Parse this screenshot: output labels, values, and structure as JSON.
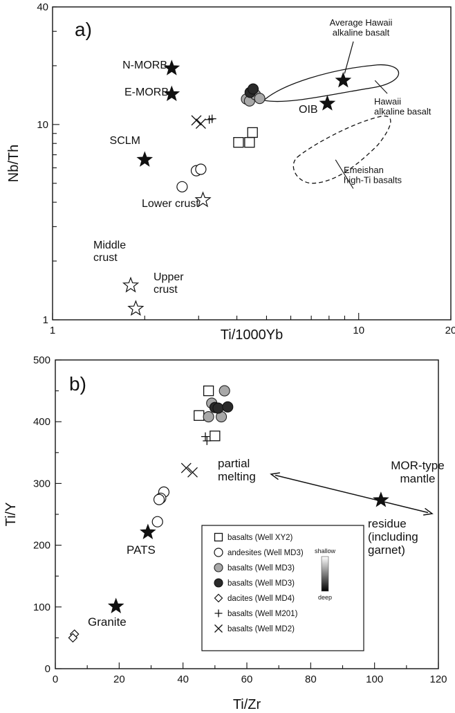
{
  "chart_data": [
    {
      "type": "scatter",
      "panel_label": "a)",
      "xlabel": "Ti/1000Yb",
      "ylabel": "Nb/Th",
      "xscale": "log",
      "yscale": "log",
      "xlim": [
        1,
        20
      ],
      "ylim": [
        1,
        40
      ],
      "x_ticks": [
        1,
        10,
        20
      ],
      "y_ticks": [
        1,
        10,
        40
      ],
      "series": [
        {
          "name": "basalts (Well XY2)",
          "marker": "square-open",
          "points": [
            [
              4.05,
              8.1
            ],
            [
              4.4,
              8.1
            ],
            [
              4.5,
              9.1
            ]
          ]
        },
        {
          "name": "andesites (Well MD3)",
          "marker": "circle-open",
          "points": [
            [
              2.65,
              4.8
            ],
            [
              2.95,
              5.8
            ],
            [
              3.05,
              5.9
            ]
          ]
        },
        {
          "name": "basalts (Well MD3)",
          "marker": "circle-gray",
          "points": [
            [
              4.3,
              13.5
            ],
            [
              4.4,
              13.2
            ],
            [
              4.6,
              14.2
            ],
            [
              4.75,
              13.6
            ]
          ]
        },
        {
          "name": "basalts (Well MD3)",
          "marker": "circle-black",
          "points": [
            [
              4.42,
              14.6
            ],
            [
              4.52,
              15.2
            ]
          ]
        },
        {
          "name": "basalts (Well M201)",
          "marker": "plus",
          "points": [
            [
              3.25,
              10.6
            ],
            [
              3.32,
              10.7
            ]
          ]
        },
        {
          "name": "basalts (Well MD2)",
          "marker": "x",
          "points": [
            [
              2.95,
              10.5
            ],
            [
              3.05,
              10.1
            ]
          ]
        }
      ],
      "reference_points": [
        {
          "label": "N-MORB",
          "x": 2.45,
          "y": 19.4,
          "marker": "star-filled"
        },
        {
          "label": "E-MORB",
          "x": 2.45,
          "y": 14.3,
          "marker": "star-filled"
        },
        {
          "label": "SCLM",
          "x": 2.0,
          "y": 6.6,
          "marker": "star-filled"
        },
        {
          "label": "OIB",
          "x": 7.9,
          "y": 12.8,
          "marker": "star-filled"
        },
        {
          "label": "Average Hawaii\nalkaline basalt",
          "x": 8.9,
          "y": 16.8,
          "marker": "star-filled"
        },
        {
          "label": "Lower crust",
          "x": 3.1,
          "y": 4.1,
          "marker": "star-open"
        },
        {
          "label": "Middle\ncrust",
          "x": 1.8,
          "y": 1.5,
          "marker": "star-open"
        },
        {
          "label": "Upper\ncrust",
          "x": 1.87,
          "y": 1.14,
          "marker": "star-open"
        }
      ],
      "fields": [
        {
          "label": "Hawaii\nalkaline basalt",
          "style": "solid"
        },
        {
          "label": "Emeishan\nhigh-Ti basalts",
          "style": "dashed"
        }
      ]
    },
    {
      "type": "scatter",
      "panel_label": "b)",
      "xlabel": "Ti/Zr",
      "ylabel": "Ti/Y",
      "xlim": [
        0,
        120
      ],
      "ylim": [
        0,
        500
      ],
      "x_ticks": [
        0,
        20,
        40,
        60,
        80,
        100,
        120
      ],
      "y_ticks": [
        0,
        100,
        200,
        300,
        400,
        500
      ],
      "series": [
        {
          "name": "basalts (Well XY2)",
          "marker": "square-open",
          "points": [
            [
              48,
              450
            ],
            [
              45,
              410
            ],
            [
              50,
              377
            ]
          ]
        },
        {
          "name": "andesites (Well MD3)",
          "marker": "circle-open",
          "points": [
            [
              34,
              286
            ],
            [
              33,
              276
            ],
            [
              32.5,
              274
            ],
            [
              32,
              238
            ]
          ]
        },
        {
          "name": "basalts (Well MD3)",
          "marker": "circle-gray",
          "points": [
            [
              53,
              450
            ],
            [
              49,
              430
            ],
            [
              52,
              408
            ],
            [
              48,
              408
            ]
          ]
        },
        {
          "name": "basalts (Well MD3)",
          "marker": "circle-black",
          "points": [
            [
              50,
              423
            ],
            [
              51,
              422
            ],
            [
              54,
              424
            ]
          ]
        },
        {
          "name": "dacites (Well MD4)",
          "marker": "diamond-open",
          "points": [
            [
              6,
              56
            ],
            [
              5.5,
              50
            ]
          ]
        },
        {
          "name": "basalts (Well M201)",
          "marker": "plus",
          "points": [
            [
              47,
              376
            ],
            [
              47.5,
              369
            ]
          ]
        },
        {
          "name": "basalts (Well MD2)",
          "marker": "x",
          "points": [
            [
              41,
              325
            ],
            [
              43,
              318
            ]
          ]
        }
      ],
      "reference_points": [
        {
          "label": "PATS",
          "x": 29,
          "y": 221,
          "marker": "star-filled"
        },
        {
          "label": "Granite",
          "x": 19,
          "y": 101,
          "marker": "star-filled"
        },
        {
          "label": "MOR-type\nmantle",
          "x": 102,
          "y": 273,
          "marker": "star-filled"
        }
      ],
      "annotations": [
        {
          "text": "partial\nmelting"
        },
        {
          "text": "residue\n(including\ngarnet)"
        }
      ],
      "legend": {
        "position": "bottom-center",
        "entries": [
          {
            "marker": "square-open",
            "label": "basalts (Well XY2)"
          },
          {
            "marker": "circle-open",
            "label": "andesites (Well MD3)"
          },
          {
            "marker": "circle-gray",
            "label": "basalts (Well MD3)"
          },
          {
            "marker": "circle-black",
            "label": "basalts (Well MD3)"
          },
          {
            "marker": "diamond-open",
            "label": "dacites (Well MD4)"
          },
          {
            "marker": "plus",
            "label": "basalts (Well M201)"
          },
          {
            "marker": "x",
            "label": "basalts (Well MD2)"
          }
        ],
        "gradient_top": "shallow",
        "gradient_bottom": "deep"
      }
    }
  ]
}
